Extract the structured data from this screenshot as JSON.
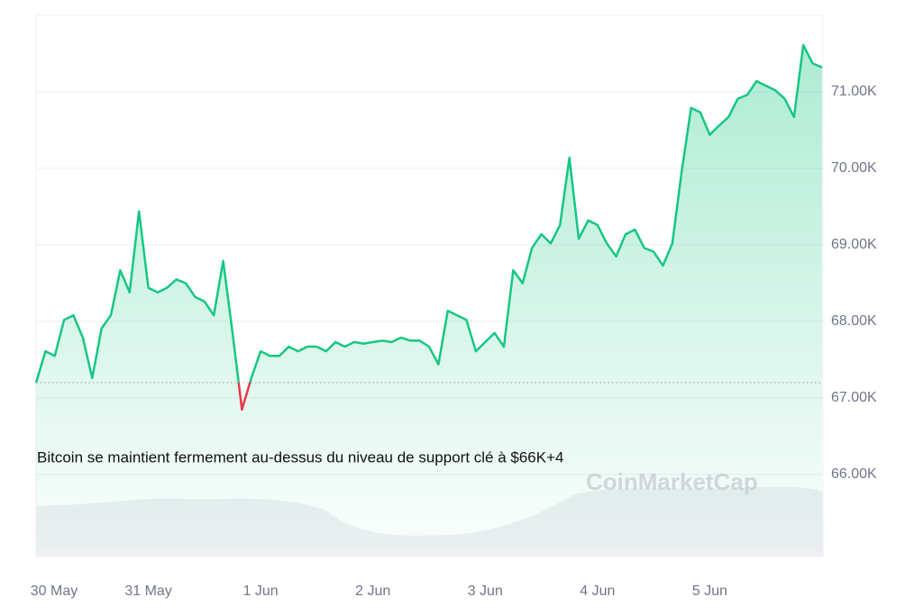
{
  "chart_data": {
    "type": "line",
    "annotation": "Bitcoin se maintient fermement au-dessus du niveau de support clé à $66K+4",
    "watermark": "CoinMarketCap",
    "categories": [
      "30 May",
      null,
      null,
      null,
      null,
      null,
      null,
      null,
      null,
      null,
      null,
      null,
      "31 May",
      null,
      null,
      null,
      null,
      null,
      null,
      null,
      null,
      null,
      null,
      null,
      "1 Jun",
      null,
      null,
      null,
      null,
      null,
      null,
      null,
      null,
      null,
      null,
      null,
      "2 Jun",
      null,
      null,
      null,
      null,
      null,
      null,
      null,
      null,
      null,
      null,
      null,
      "3 Jun",
      null,
      null,
      null,
      null,
      null,
      null,
      null,
      null,
      null,
      null,
      null,
      "4 Jun",
      null,
      null,
      null,
      null,
      null,
      null,
      null,
      null,
      null,
      null,
      null,
      "5 Jun",
      null,
      null,
      null,
      null,
      null,
      null,
      null,
      null,
      null,
      null,
      null,
      null
    ],
    "series": [
      {
        "color": "#16c784",
        "values": [
          67200,
          67610,
          67550,
          68020,
          68080,
          67790,
          67260,
          67910,
          68080,
          68670,
          68380,
          69440,
          68440,
          68380,
          68440,
          68550,
          68500,
          68320,
          68260,
          68080,
          68790,
          67850,
          66850,
          67260,
          67610,
          67550,
          67550,
          67670,
          67610,
          67670,
          67670,
          67610,
          67730,
          67670,
          67730,
          67710,
          67730,
          67750,
          67730,
          67790,
          67750,
          67750,
          67670,
          67440,
          68140,
          68080,
          68020,
          67610,
          67730,
          67850,
          67670,
          68670,
          68500,
          68960,
          69140,
          69020,
          69260,
          70140,
          69080,
          69320,
          69260,
          69020,
          68850,
          69140,
          69200,
          68960,
          68910,
          68730,
          69020,
          69960,
          70790,
          70730,
          70440,
          70560,
          70670,
          70910,
          70960,
          71140,
          71080,
          71020,
          70910,
          70670,
          71610,
          71370,
          71320
        ]
      }
    ],
    "below_open_color": "#ea3943",
    "ylim": [
      65000,
      72000
    ],
    "yticks": [
      {
        "value": 66000,
        "label": "66.00K"
      },
      {
        "value": 67000,
        "label": "67.00K"
      },
      {
        "value": 68000,
        "label": "68.00K"
      },
      {
        "value": 69000,
        "label": "69.00K"
      },
      {
        "value": 70000,
        "label": "70.00K"
      },
      {
        "value": 71000,
        "label": "71.00K"
      }
    ],
    "grid": true
  }
}
